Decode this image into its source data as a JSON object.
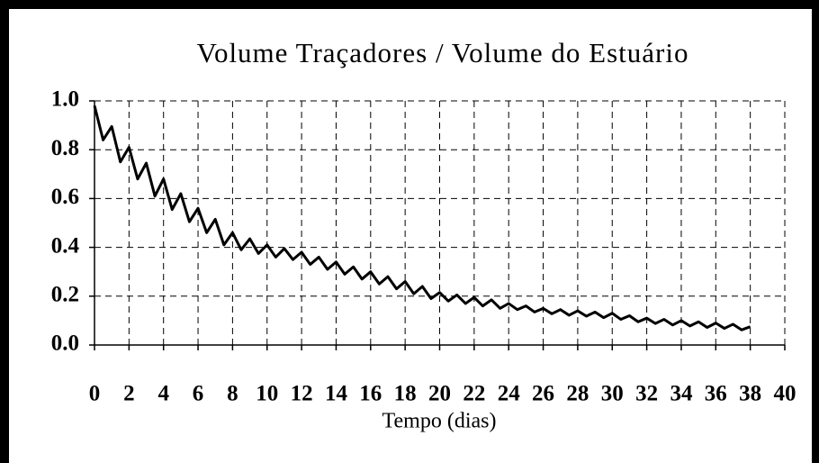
{
  "chart_data": {
    "type": "line",
    "title": "Volume Traçadores / Volume do Estuário",
    "xlabel": "Tempo (dias)",
    "color": "#000000",
    "grid": true,
    "xlim": [
      0,
      40
    ],
    "xticks": [
      0,
      2,
      4,
      6,
      8,
      10,
      12,
      14,
      16,
      18,
      20,
      22,
      24,
      26,
      28,
      30,
      32,
      34,
      36,
      38,
      40
    ],
    "ylim": [
      0,
      1
    ],
    "yticks": [
      {
        "value": 0,
        "label": "0.0"
      },
      0.2,
      0.4,
      0.6,
      0.8,
      {
        "value": 1,
        "label": "1.0"
      }
    ],
    "x": [
      0,
      0.5,
      1,
      1.5,
      2,
      2.5,
      3,
      3.5,
      4,
      4.5,
      5,
      5.5,
      6,
      6.5,
      7,
      7.5,
      8,
      8.5,
      9,
      9.5,
      10,
      10.5,
      11,
      11.5,
      12,
      12.5,
      13,
      13.5,
      14,
      14.5,
      15,
      15.5,
      16,
      16.5,
      17,
      17.5,
      18,
      18.5,
      19,
      19.5,
      20,
      20.5,
      21,
      21.5,
      22,
      22.5,
      23,
      23.5,
      24,
      24.5,
      25,
      25.5,
      26,
      26.5,
      27,
      27.5,
      28,
      28.5,
      29,
      29.5,
      30,
      30.5,
      31,
      31.5,
      32,
      32.5,
      33,
      33.5,
      34,
      34.5,
      35,
      35.5,
      36,
      36.5,
      37,
      37.5,
      38
    ],
    "values": [
      0.98,
      0.84,
      0.895,
      0.75,
      0.81,
      0.68,
      0.745,
      0.61,
      0.68,
      0.555,
      0.62,
      0.505,
      0.56,
      0.46,
      0.515,
      0.41,
      0.46,
      0.39,
      0.435,
      0.375,
      0.41,
      0.36,
      0.395,
      0.35,
      0.38,
      0.33,
      0.36,
      0.31,
      0.34,
      0.29,
      0.32,
      0.27,
      0.3,
      0.25,
      0.28,
      0.23,
      0.26,
      0.21,
      0.24,
      0.19,
      0.215,
      0.18,
      0.205,
      0.17,
      0.195,
      0.16,
      0.185,
      0.15,
      0.17,
      0.145,
      0.16,
      0.135,
      0.15,
      0.128,
      0.145,
      0.122,
      0.14,
      0.118,
      0.135,
      0.112,
      0.13,
      0.105,
      0.12,
      0.095,
      0.11,
      0.088,
      0.105,
      0.082,
      0.1,
      0.078,
      0.095,
      0.072,
      0.09,
      0.068,
      0.085,
      0.062,
      0.075
    ]
  }
}
